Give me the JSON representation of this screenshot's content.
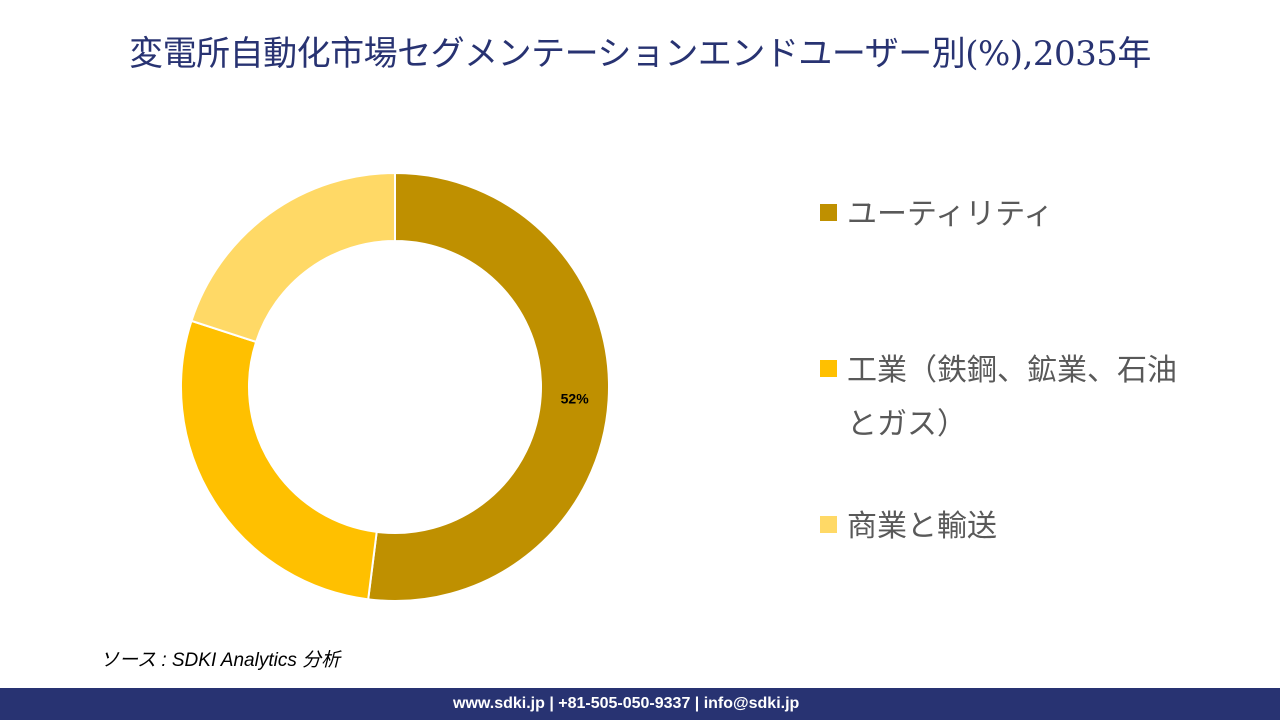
{
  "title": "変電所自動化市場セグメンテーションエンドユーザー別(%),2035年",
  "chart_data": {
    "type": "pie",
    "donut": true,
    "categories": [
      "ユーティリティ",
      "工業（鉄鋼、鉱業、石油とガス）",
      "商業と輸送"
    ],
    "values": [
      52,
      28,
      20
    ],
    "data_labels": [
      "52%",
      "",
      ""
    ],
    "colors": [
      "#BF9000",
      "#FFC000",
      "#FFD966"
    ],
    "legend_position": "right"
  },
  "source": "ソース : SDKI Analytics 分析",
  "footer": "www.sdki.jp | +81-505-050-9337 | info@sdki.jp"
}
